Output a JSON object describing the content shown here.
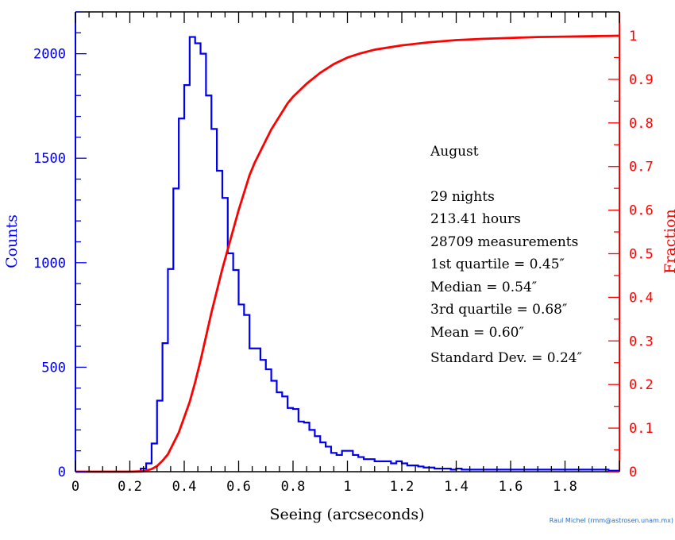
{
  "chart_data": {
    "type": "bar",
    "xlabel": "Seeing (arcseconds)",
    "ylabel_left": "Counts",
    "ylabel_right": "Fraction",
    "xlim": [
      0,
      2.0
    ],
    "ylim_left": [
      0,
      2200
    ],
    "ylim_right": [
      0,
      1.0
    ],
    "x_ticks": [
      "0",
      "0.2",
      "0.4",
      "0.6",
      "0.8",
      "1",
      "1.2",
      "1.4",
      "1.6",
      "1.8"
    ],
    "x_tick_values": [
      0,
      0.2,
      0.4,
      0.6,
      0.8,
      1.0,
      1.2,
      1.4,
      1.6,
      1.8
    ],
    "y_left_ticks": [
      "0",
      "500",
      "1000",
      "1500",
      "2000"
    ],
    "y_left_tick_values": [
      0,
      500,
      1000,
      1500,
      2000
    ],
    "y_right_ticks": [
      "0",
      "0.1",
      "0.2",
      "0.3",
      "0.4",
      "0.5",
      "0.6",
      "0.7",
      "0.8",
      "0.9",
      "1"
    ],
    "y_right_tick_values": [
      0,
      0.1,
      0.2,
      0.3,
      0.4,
      0.5,
      0.6,
      0.7,
      0.8,
      0.9,
      1.0
    ],
    "colors": {
      "histogram": "#0000ee",
      "cumulative": "#ff0000",
      "left_axis": "#0000ee",
      "right_axis": "#ff0000"
    },
    "series": [
      {
        "kind": "histogram",
        "bin_width": 0.02,
        "bin_start": 0,
        "values": [
          0,
          0,
          0,
          0,
          0,
          0,
          0,
          0,
          0,
          0,
          0,
          0,
          15,
          40,
          135,
          340,
          615,
          970,
          1355,
          1690,
          1850,
          2080,
          2050,
          2000,
          1800,
          1640,
          1440,
          1310,
          1045,
          965,
          800,
          750,
          590,
          590,
          535,
          490,
          435,
          380,
          360,
          305,
          300,
          240,
          235,
          200,
          170,
          140,
          120,
          90,
          80,
          100,
          100,
          80,
          70,
          60,
          60,
          50,
          50,
          50,
          40,
          50,
          40,
          30,
          30,
          25,
          20,
          20,
          15,
          15,
          15,
          10,
          15,
          10,
          10,
          10,
          10,
          10,
          10,
          10,
          10,
          10,
          10,
          10,
          10,
          10,
          10,
          10,
          10,
          10,
          10,
          10,
          10,
          10,
          10,
          10,
          10,
          10,
          10,
          10,
          5,
          5
        ]
      },
      {
        "kind": "cumulative",
        "x": [
          0,
          0.2,
          0.25,
          0.28,
          0.3,
          0.32,
          0.34,
          0.36,
          0.38,
          0.4,
          0.42,
          0.44,
          0.46,
          0.48,
          0.5,
          0.52,
          0.54,
          0.56,
          0.58,
          0.6,
          0.62,
          0.64,
          0.66,
          0.68,
          0.7,
          0.72,
          0.74,
          0.76,
          0.78,
          0.8,
          0.85,
          0.9,
          0.95,
          1.0,
          1.05,
          1.1,
          1.2,
          1.3,
          1.4,
          1.5,
          1.6,
          1.7,
          1.8,
          1.9,
          2.0
        ],
        "y": [
          0,
          0,
          0.001,
          0.006,
          0.013,
          0.025,
          0.04,
          0.065,
          0.09,
          0.125,
          0.16,
          0.205,
          0.255,
          0.31,
          0.365,
          0.415,
          0.465,
          0.51,
          0.555,
          0.6,
          0.64,
          0.68,
          0.71,
          0.735,
          0.76,
          0.785,
          0.805,
          0.825,
          0.845,
          0.86,
          0.89,
          0.915,
          0.935,
          0.95,
          0.96,
          0.968,
          0.978,
          0.985,
          0.99,
          0.993,
          0.995,
          0.997,
          0.998,
          0.999,
          1.0
        ]
      }
    ],
    "annotations": {
      "month": "August",
      "lines": [
        "29 nights",
        "213.41 hours",
        "28709 measurements",
        "1st quartile = 0.45″",
        "Median = 0.54″",
        "3rd quartile = 0.68″",
        "Mean = 0.60″",
        "Standard Dev. = 0.24″"
      ]
    }
  },
  "credit": "Raul Michel (rmm@astrosen.unam.mx)"
}
